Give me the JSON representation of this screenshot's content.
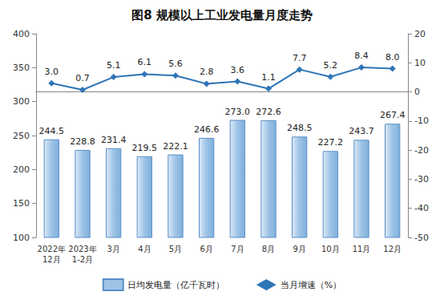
{
  "chart_data": {
    "type": "bar",
    "title": "图8 规模以上工业发电量月度走势",
    "categories": [
      "2022年\n12月",
      "2023年\n1-2月",
      "3月",
      "4月",
      "5月",
      "6月",
      "7月",
      "8月",
      "9月",
      "10月",
      "11月",
      "12月"
    ],
    "series": [
      {
        "name": "日均发电量（亿千瓦时）",
        "type": "bar",
        "color": "#9dc3e6",
        "values": [
          244.5,
          228.8,
          231.4,
          219.5,
          222.1,
          246.6,
          273.0,
          272.6,
          248.5,
          227.2,
          243.7,
          267.4
        ],
        "value_labels": [
          "244.5",
          "228.8",
          "231.4",
          "219.5",
          "222.1",
          "246.6",
          "273.0",
          "272.6",
          "248.5",
          "227.2",
          "243.7",
          "267.4"
        ]
      },
      {
        "name": "当月增速（%）",
        "type": "line",
        "axis": "y2",
        "color": "#2e75b6",
        "marker": "diamond",
        "values": [
          3.0,
          0.7,
          5.1,
          6.1,
          5.6,
          2.8,
          3.6,
          1.1,
          7.7,
          5.2,
          8.4,
          8.0
        ],
        "value_labels": [
          "3.0",
          "0.7",
          "5.1",
          "6.1",
          "5.6",
          "2.8",
          "3.6",
          "1.1",
          "7.7",
          "5.2",
          "8.4",
          "8.0"
        ]
      }
    ],
    "ylim": [
      100,
      400
    ],
    "yticks": [
      100,
      150,
      200,
      250,
      300,
      350,
      400
    ],
    "y2lim": [
      -50,
      20
    ],
    "y2ticks": [
      -50,
      -40,
      -30,
      -20,
      -10,
      0,
      10,
      20
    ],
    "grid": false,
    "legend": "bottom",
    "data_labels": true
  }
}
